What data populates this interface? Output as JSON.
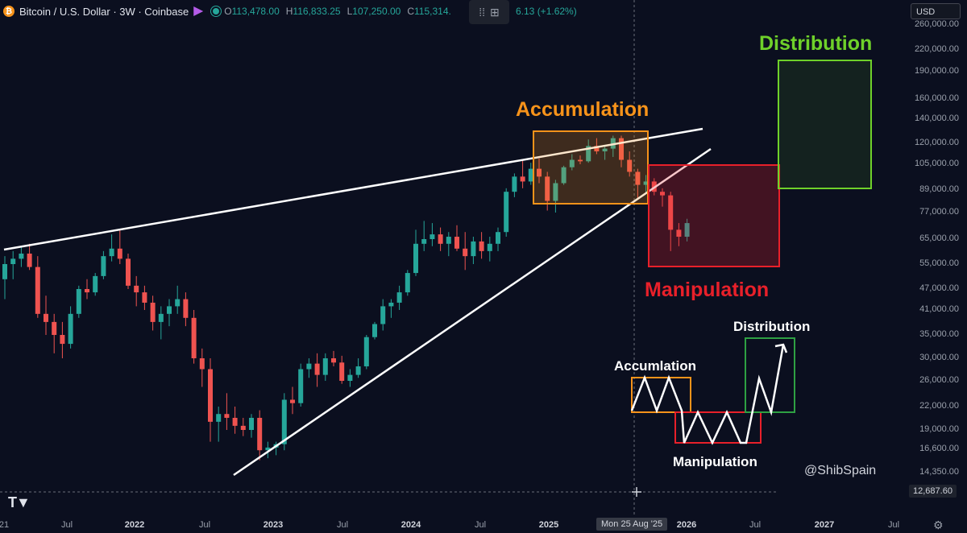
{
  "header": {
    "symbol_title": "Bitcoin / U.S. Dollar · 3W · Coinbase",
    "ohlc": [
      {
        "k": "O",
        "v": "113,478.00"
      },
      {
        "k": "H",
        "v": "116,833.25"
      },
      {
        "k": "L",
        "v": "107,250.00"
      },
      {
        "k": "C",
        "v": "115,314."
      }
    ],
    "change": "6.13 (+1.62%)"
  },
  "currency_select": "USD",
  "y_axis": [
    "260,000.00",
    "220,000.00",
    "190,000.00",
    "160,000.00",
    "140,000.00",
    "120,000.00",
    "105,000.00",
    "89,000.00",
    "77,000.00",
    "65,000.00",
    "55,000.00",
    "47,000.00",
    "41,000.00",
    "35,000.00",
    "30,000.00",
    "26,000.00",
    "22,000.00",
    "19,000.00",
    "16,600.00",
    "14,350.00"
  ],
  "price_tag": "12,687.60",
  "x_axis": [
    {
      "label": "21",
      "bold": false
    },
    {
      "label": "Jul",
      "bold": false
    },
    {
      "label": "2022",
      "bold": true
    },
    {
      "label": "Jul",
      "bold": false
    },
    {
      "label": "2023",
      "bold": true
    },
    {
      "label": "Jul",
      "bold": false
    },
    {
      "label": "2024",
      "bold": true
    },
    {
      "label": "Jul",
      "bold": false
    },
    {
      "label": "2025",
      "bold": true
    },
    {
      "label": "2026",
      "bold": true
    },
    {
      "label": "Jul",
      "bold": false
    },
    {
      "label": "2027",
      "bold": true
    },
    {
      "label": "Jul",
      "bold": false
    }
  ],
  "crosshair_date": "Mon 25 Aug '25",
  "annotations": {
    "accumulation": "Accumulation",
    "manipulation": "Manipulation",
    "distribution": "Distribution",
    "mini_accumulation": "Accumlation",
    "mini_manipulation": "Manipulation",
    "mini_distribution": "Distribution",
    "watermark": "@ShibSpain"
  },
  "colors": {
    "bull": "#26a69a",
    "bear": "#ef5350",
    "accumulation": "#f7931a",
    "manipulation": "#e8202a",
    "distribution": "#6fd12a"
  },
  "chart_data": {
    "type": "candlestick",
    "y_scale": "log",
    "note_series": "3-week BTC/USD candles, approximate, read from the chart",
    "candles": [
      [
        50000,
        58000,
        44000,
        55000
      ],
      [
        55000,
        60000,
        50000,
        57000
      ],
      [
        57000,
        62000,
        54000,
        59000
      ],
      [
        59000,
        63000,
        53000,
        54000
      ],
      [
        54000,
        58000,
        39000,
        40000
      ],
      [
        40000,
        45000,
        35000,
        38000
      ],
      [
        38000,
        40000,
        31000,
        35000
      ],
      [
        35000,
        38000,
        30000,
        33000
      ],
      [
        33000,
        42000,
        32000,
        40000
      ],
      [
        40000,
        48000,
        39000,
        47000
      ],
      [
        47000,
        50000,
        44000,
        46000
      ],
      [
        46000,
        52000,
        45000,
        51000
      ],
      [
        51000,
        60000,
        50000,
        58000
      ],
      [
        58000,
        67000,
        56000,
        61000
      ],
      [
        61000,
        69000,
        55000,
        57000
      ],
      [
        57000,
        59000,
        47000,
        48000
      ],
      [
        48000,
        51000,
        42000,
        46000
      ],
      [
        46000,
        48000,
        41000,
        43000
      ],
      [
        43000,
        45000,
        36000,
        38000
      ],
      [
        38000,
        42000,
        34000,
        40000
      ],
      [
        40000,
        44000,
        37000,
        42000
      ],
      [
        42000,
        48000,
        40000,
        44000
      ],
      [
        44000,
        46000,
        37000,
        39000
      ],
      [
        39000,
        41000,
        29000,
        30000
      ],
      [
        30000,
        32000,
        25000,
        28000
      ],
      [
        28000,
        30000,
        17500,
        20000
      ],
      [
        20000,
        22000,
        17500,
        21000
      ],
      [
        21000,
        24000,
        19000,
        20500
      ],
      [
        20500,
        22000,
        18500,
        19500
      ],
      [
        19500,
        20500,
        18200,
        19000
      ],
      [
        19000,
        21000,
        18000,
        20500
      ],
      [
        20500,
        21500,
        15500,
        16500
      ],
      [
        16500,
        17500,
        15700,
        16800
      ],
      [
        16800,
        17500,
        16000,
        17200
      ],
      [
        17200,
        24000,
        16500,
        23000
      ],
      [
        23000,
        25000,
        21000,
        22500
      ],
      [
        22500,
        29000,
        22000,
        28000
      ],
      [
        28000,
        30000,
        26500,
        29000
      ],
      [
        29000,
        31000,
        25000,
        27000
      ],
      [
        27000,
        31000,
        26000,
        30000
      ],
      [
        30000,
        31500,
        28500,
        29200
      ],
      [
        29200,
        30500,
        25500,
        26000
      ],
      [
        26000,
        28000,
        25000,
        27000
      ],
      [
        27000,
        30000,
        26500,
        28500
      ],
      [
        28500,
        35000,
        28000,
        34500
      ],
      [
        34500,
        38000,
        34000,
        37500
      ],
      [
        37500,
        44000,
        36000,
        42000
      ],
      [
        42000,
        44000,
        39000,
        43000
      ],
      [
        43000,
        48000,
        41000,
        46000
      ],
      [
        46000,
        53000,
        45000,
        52000
      ],
      [
        52000,
        69000,
        51000,
        63000
      ],
      [
        63000,
        73000,
        60000,
        65000
      ],
      [
        65000,
        72000,
        62000,
        67000
      ],
      [
        67000,
        70000,
        60000,
        63000
      ],
      [
        63000,
        68000,
        58000,
        66000
      ],
      [
        66000,
        71000,
        60000,
        61000
      ],
      [
        61000,
        68000,
        53000,
        58000
      ],
      [
        58000,
        66000,
        55000,
        64000
      ],
      [
        64000,
        68000,
        57000,
        60000
      ],
      [
        60000,
        66000,
        56000,
        63000
      ],
      [
        63000,
        70000,
        60000,
        68000
      ],
      [
        68000,
        90000,
        66000,
        88000
      ],
      [
        88000,
        99000,
        85000,
        97000
      ],
      [
        97000,
        108000,
        90000,
        94000
      ],
      [
        94000,
        106000,
        92000,
        102000
      ],
      [
        102000,
        109000,
        93000,
        97000
      ],
      [
        97000,
        100000,
        78000,
        83000
      ],
      [
        83000,
        95000,
        77000,
        93000
      ],
      [
        93000,
        104000,
        92000,
        103000
      ],
      [
        103000,
        112000,
        101000,
        108000
      ],
      [
        108000,
        111000,
        105000,
        107000
      ],
      [
        107000,
        123000,
        106000,
        118000
      ],
      [
        118000,
        124000,
        112000,
        114000
      ],
      [
        114000,
        118000,
        108000,
        116000
      ],
      [
        116000,
        126000,
        110000,
        124000
      ],
      [
        124000,
        126000,
        103000,
        108000
      ],
      [
        108000,
        114000,
        97000,
        100000
      ],
      [
        100000,
        102000,
        84000,
        92000
      ],
      [
        92000,
        98000,
        87000,
        94000
      ],
      [
        94000,
        96000,
        86000,
        88000
      ],
      [
        88000,
        90000,
        80000,
        86000
      ],
      [
        86000,
        88000,
        60000,
        69000
      ],
      [
        69000,
        72000,
        62000,
        66000
      ],
      [
        66000,
        74000,
        64000,
        72000
      ]
    ]
  }
}
